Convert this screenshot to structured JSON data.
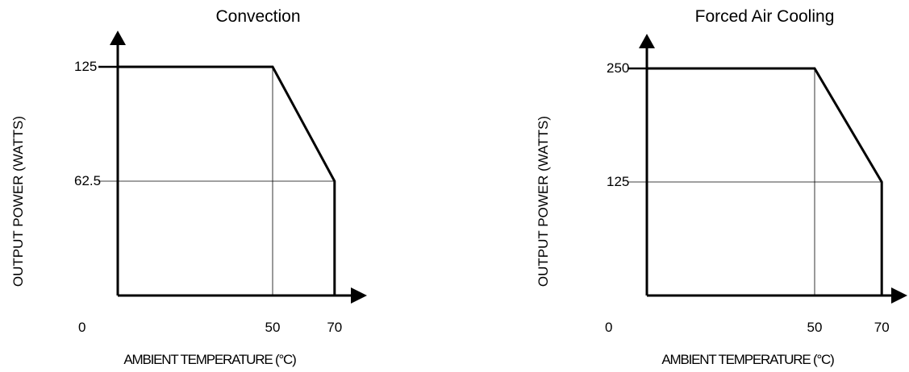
{
  "chart_data": [
    {
      "type": "line",
      "title": "Convection",
      "xlabel": "AMBIENT TEMPERATURE  (°C)",
      "ylabel": "OUTPUT POWER (WATTS)",
      "origin_label": "0",
      "x_ticks": [
        "50",
        "70"
      ],
      "y_ticks": [
        "125",
        "62.5"
      ],
      "xlim": [
        0,
        80
      ],
      "ylim": [
        0,
        150
      ],
      "series": [
        {
          "x": [
            0,
            50,
            70,
            70
          ],
          "y": [
            125,
            125,
            62.5,
            0
          ]
        }
      ],
      "guides": {
        "x": [
          50
        ],
        "y": [
          62.5
        ]
      }
    },
    {
      "type": "line",
      "title": "Forced Air Cooling",
      "xlabel": "AMBIENT TEMPERATURE  (°C)",
      "ylabel": "OUTPUT POWER (WATTS)",
      "origin_label": "0",
      "x_ticks": [
        "50",
        "70"
      ],
      "y_ticks": [
        "250",
        "125"
      ],
      "xlim": [
        0,
        80
      ],
      "ylim": [
        0,
        300
      ],
      "series": [
        {
          "x": [
            0,
            50,
            70,
            70
          ],
          "y": [
            250,
            250,
            125,
            0
          ]
        }
      ],
      "guides": {
        "x": [
          50
        ],
        "y": [
          125
        ]
      }
    }
  ]
}
